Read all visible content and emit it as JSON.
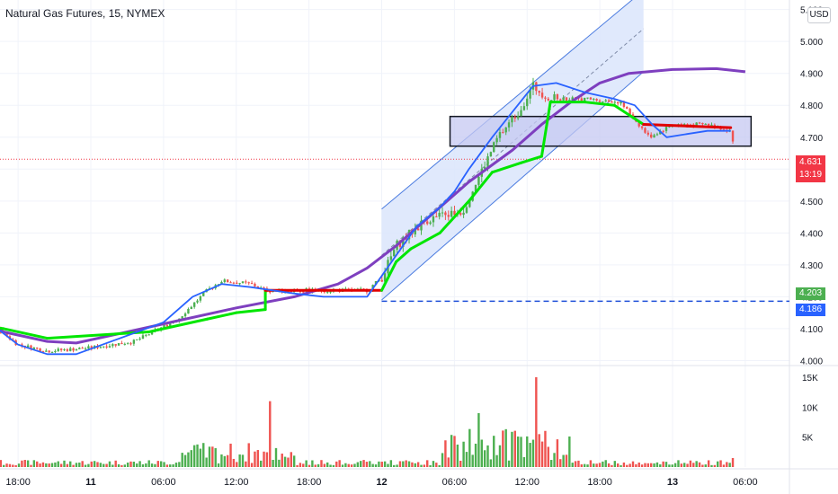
{
  "header": {
    "symbol_title": "Natural Gas Futures, 15, NYMEX",
    "currency_button": "USD"
  },
  "badges": {
    "last_price": "4.631",
    "countdown": "13:19",
    "level_green": "4.203",
    "level_blue": "4.186"
  },
  "colors": {
    "up": "#26a69a",
    "candle_up": "#4caf50",
    "candle_down": "#ef5350",
    "blue_ma": "#2962ff",
    "purple_ma": "#7e3fbf",
    "green_line": "#00e600",
    "red_line": "#e00000",
    "channel_fill": "#dbe5fb",
    "range_box_fill": "#c6c8f2",
    "dash_level": "#1e4fd8"
  },
  "chart_data": {
    "type": "candlestick",
    "x_tick_labels": [
      "18:00",
      "11",
      "06:00",
      "12:00",
      "18:00",
      "12",
      "06:00",
      "12:00",
      "18:00",
      "13",
      "06:00"
    ],
    "y_price_ticks": [
      "5.100",
      "5.000",
      "4.900",
      "4.800",
      "4.700",
      "4.600",
      "4.500",
      "4.400",
      "4.300",
      "4.200",
      "4.100",
      "4.000"
    ],
    "y_price_range": [
      3.99,
      5.13
    ],
    "volume_ticks": [
      "15K",
      "10K",
      "5K"
    ],
    "volume_range": [
      0,
      16500
    ],
    "last_price": 4.631,
    "horizontal_level": 4.186,
    "range_box": {
      "high": 4.765,
      "low": 4.672
    },
    "channel": {
      "start_time": "12 00:00",
      "end_time": "12 21:00",
      "upper_start": 4.475,
      "upper_end": 5.16,
      "lower_start": 4.19,
      "lower_end": 4.905,
      "mid_start": 4.33,
      "mid_end": 5.04
    },
    "moving_average_long": [
      [
        -0.1,
        4.19
      ],
      [
        0.2,
        4.18
      ],
      [
        0.5,
        4.16
      ],
      [
        0.6,
        4.14
      ],
      [
        0.7,
        4.09
      ],
      [
        0.85,
        4.06
      ],
      [
        0.95,
        4.055
      ],
      [
        1.1,
        4.085
      ],
      [
        1.3,
        4.125
      ],
      [
        1.5,
        4.165
      ],
      [
        1.7,
        4.2
      ],
      [
        1.85,
        4.24
      ],
      [
        1.95,
        4.29
      ],
      [
        2.05,
        4.36
      ],
      [
        2.15,
        4.44
      ],
      [
        2.3,
        4.56
      ],
      [
        2.45,
        4.66
      ],
      [
        2.55,
        4.74
      ],
      [
        2.65,
        4.81
      ],
      [
        2.75,
        4.87
      ],
      [
        2.85,
        4.9
      ],
      [
        3.0,
        4.912
      ],
      [
        3.15,
        4.915
      ],
      [
        3.25,
        4.905
      ]
    ],
    "moving_average_fast": [
      [
        -0.1,
        4.14
      ],
      [
        0.2,
        4.14
      ],
      [
        0.5,
        4.14
      ],
      [
        0.65,
        4.12
      ],
      [
        0.75,
        4.05
      ],
      [
        0.85,
        4.02
      ],
      [
        0.95,
        4.02
      ],
      [
        1.1,
        4.07
      ],
      [
        1.25,
        4.12
      ],
      [
        1.35,
        4.2
      ],
      [
        1.45,
        4.24
      ],
      [
        1.55,
        4.23
      ],
      [
        1.7,
        4.21
      ],
      [
        1.8,
        4.2
      ],
      [
        1.95,
        4.2
      ],
      [
        2.05,
        4.33
      ],
      [
        2.12,
        4.42
      ],
      [
        2.2,
        4.48
      ],
      [
        2.25,
        4.53
      ],
      [
        2.3,
        4.6
      ],
      [
        2.38,
        4.7
      ],
      [
        2.45,
        4.78
      ],
      [
        2.52,
        4.86
      ],
      [
        2.6,
        4.87
      ],
      [
        2.7,
        4.84
      ],
      [
        2.8,
        4.82
      ],
      [
        2.87,
        4.8
      ],
      [
        2.93,
        4.74
      ],
      [
        2.98,
        4.7
      ],
      [
        3.05,
        4.71
      ],
      [
        3.12,
        4.72
      ],
      [
        3.2,
        4.72
      ]
    ],
    "step_line": [
      [
        -0.1,
        4.15
      ],
      [
        0.4,
        4.14
      ],
      [
        0.7,
        4.1
      ],
      [
        0.85,
        4.07
      ],
      [
        1.2,
        4.09
      ],
      [
        1.4,
        4.13
      ],
      [
        1.5,
        4.15
      ],
      [
        1.6,
        4.16
      ],
      [
        1.6,
        4.22
      ],
      [
        1.8,
        4.22
      ],
      [
        2.0,
        4.22
      ],
      [
        2.05,
        4.31
      ],
      [
        2.1,
        4.35
      ],
      [
        2.2,
        4.4
      ],
      [
        2.3,
        4.5
      ],
      [
        2.38,
        4.59
      ],
      [
        2.48,
        4.62
      ],
      [
        2.55,
        4.64
      ],
      [
        2.58,
        4.81
      ],
      [
        2.7,
        4.81
      ],
      [
        2.8,
        4.8
      ],
      [
        2.9,
        4.74
      ],
      [
        3.05,
        4.735
      ],
      [
        3.2,
        4.73
      ]
    ],
    "candles_summary": {
      "first_low_region": 4.02,
      "consolidation_level": 4.22,
      "high_peak": 4.89,
      "last_close": 4.631
    }
  }
}
